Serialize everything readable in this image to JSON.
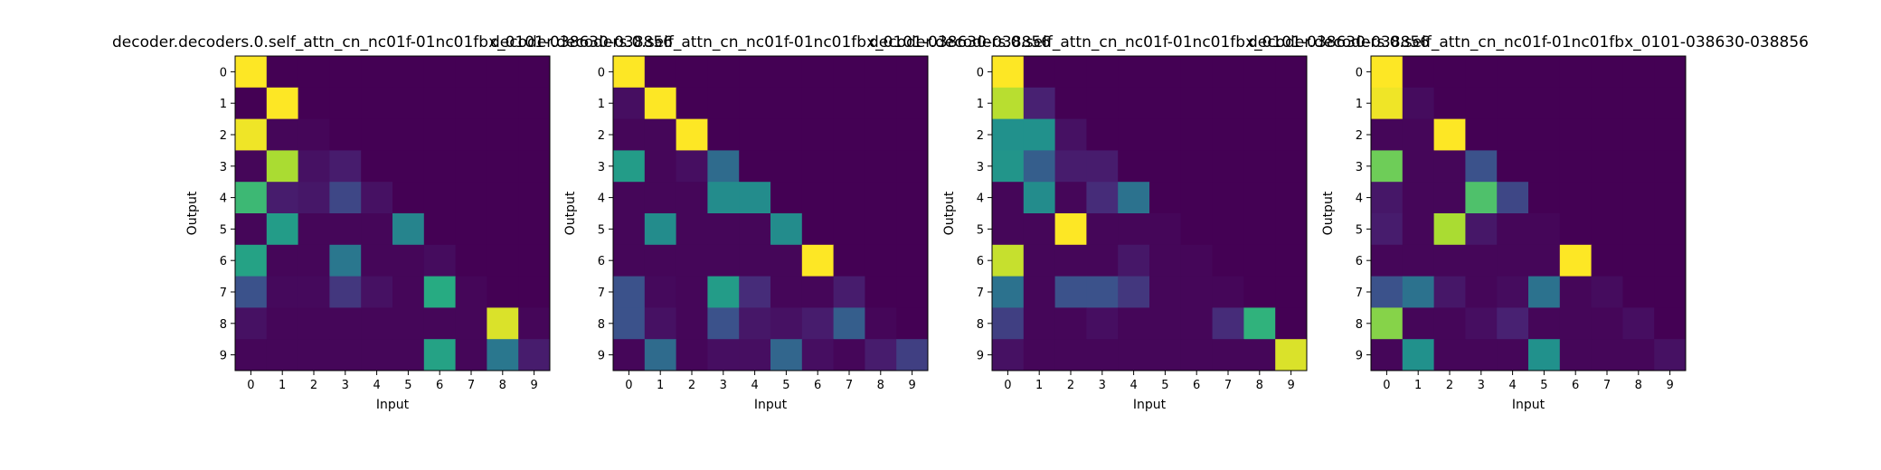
{
  "chart_data": [
    {
      "type": "heatmap",
      "title": "decoder.decoders.0.self_attn_cn_nc01f-01nc01fbx_0101-038630-038856",
      "xlabel": "Input",
      "ylabel": "Output",
      "x_ticks": [
        "0",
        "1",
        "2",
        "3",
        "4",
        "5",
        "6",
        "7",
        "8",
        "9"
      ],
      "y_ticks": [
        "0",
        "1",
        "2",
        "3",
        "4",
        "5",
        "6",
        "7",
        "8",
        "9"
      ],
      "colormap": "viridis",
      "value_range": [
        0,
        1
      ],
      "grid": false,
      "values": [
        [
          1.0,
          0,
          0,
          0,
          0,
          0,
          0,
          0,
          0,
          0
        ],
        [
          0.0,
          1.0,
          0,
          0,
          0,
          0,
          0,
          0,
          0,
          0
        ],
        [
          0.98,
          0.02,
          0.02,
          0,
          0,
          0,
          0,
          0,
          0,
          0
        ],
        [
          0.02,
          0.88,
          0.06,
          0.1,
          0,
          0,
          0,
          0,
          0,
          0
        ],
        [
          0.68,
          0.1,
          0.08,
          0.22,
          0.06,
          0,
          0,
          0,
          0,
          0
        ],
        [
          0.02,
          0.55,
          0.02,
          0.02,
          0.02,
          0.45,
          0,
          0,
          0,
          0
        ],
        [
          0.58,
          0.02,
          0.02,
          0.4,
          0.02,
          0.02,
          0.04,
          0,
          0,
          0
        ],
        [
          0.25,
          0.03,
          0.03,
          0.18,
          0.06,
          0.02,
          0.62,
          0.02,
          0,
          0
        ],
        [
          0.06,
          0.02,
          0.02,
          0.02,
          0.02,
          0.02,
          0.02,
          0.02,
          0.95,
          0.02
        ],
        [
          0.02,
          0.02,
          0.02,
          0.02,
          0.02,
          0.02,
          0.58,
          0.02,
          0.4,
          0.1
        ]
      ]
    },
    {
      "type": "heatmap",
      "title": "decoder.decoders.0.self_attn_cn_nc01f-01nc01fbx_0101-038630-038856",
      "xlabel": "Input",
      "ylabel": "Output",
      "x_ticks": [
        "0",
        "1",
        "2",
        "3",
        "4",
        "5",
        "6",
        "7",
        "8",
        "9"
      ],
      "y_ticks": [
        "0",
        "1",
        "2",
        "3",
        "4",
        "5",
        "6",
        "7",
        "8",
        "9"
      ],
      "colormap": "viridis",
      "value_range": [
        0,
        1
      ],
      "grid": false,
      "values": [
        [
          1.0,
          0,
          0,
          0,
          0,
          0,
          0,
          0,
          0,
          0
        ],
        [
          0.05,
          1.0,
          0,
          0,
          0,
          0,
          0,
          0,
          0,
          0
        ],
        [
          0.02,
          0.02,
          1.0,
          0,
          0,
          0,
          0,
          0,
          0,
          0
        ],
        [
          0.55,
          0.02,
          0.05,
          0.35,
          0,
          0,
          0,
          0,
          0,
          0
        ],
        [
          0.02,
          0.02,
          0.02,
          0.48,
          0.48,
          0,
          0,
          0,
          0,
          0
        ],
        [
          0.02,
          0.48,
          0.02,
          0.02,
          0.02,
          0.48,
          0,
          0,
          0,
          0
        ],
        [
          0.02,
          0.02,
          0.02,
          0.02,
          0.02,
          0.02,
          1.0,
          0,
          0,
          0
        ],
        [
          0.25,
          0.03,
          0.02,
          0.55,
          0.15,
          0.02,
          0.02,
          0.1,
          0,
          0
        ],
        [
          0.25,
          0.06,
          0.02,
          0.25,
          0.08,
          0.06,
          0.1,
          0.3,
          0.02,
          0
        ],
        [
          0.02,
          0.35,
          0.02,
          0.05,
          0.05,
          0.33,
          0.05,
          0.02,
          0.1,
          0.2
        ]
      ]
    },
    {
      "type": "heatmap",
      "title": "decoder.decoders.0.self_attn_cn_nc01f-01nc01fbx_0101-038630-038856",
      "xlabel": "Input",
      "ylabel": "Output",
      "x_ticks": [
        "0",
        "1",
        "2",
        "3",
        "4",
        "5",
        "6",
        "7",
        "8",
        "9"
      ],
      "y_ticks": [
        "0",
        "1",
        "2",
        "3",
        "4",
        "5",
        "6",
        "7",
        "8",
        "9"
      ],
      "colormap": "viridis",
      "value_range": [
        0,
        1
      ],
      "grid": false,
      "values": [
        [
          1.0,
          0,
          0,
          0,
          0,
          0,
          0,
          0,
          0,
          0
        ],
        [
          0.9,
          0.12,
          0,
          0,
          0,
          0,
          0,
          0,
          0,
          0
        ],
        [
          0.5,
          0.5,
          0.06,
          0,
          0,
          0,
          0,
          0,
          0,
          0
        ],
        [
          0.52,
          0.3,
          0.1,
          0.1,
          0,
          0,
          0,
          0,
          0,
          0
        ],
        [
          0.02,
          0.48,
          0.02,
          0.15,
          0.38,
          0,
          0,
          0,
          0,
          0
        ],
        [
          0.02,
          0.02,
          1.0,
          0.02,
          0.02,
          0.02,
          0,
          0,
          0,
          0
        ],
        [
          0.92,
          0.02,
          0.02,
          0.02,
          0.08,
          0.02,
          0.02,
          0,
          0,
          0
        ],
        [
          0.38,
          0.02,
          0.25,
          0.25,
          0.18,
          0.02,
          0.02,
          0.02,
          0,
          0
        ],
        [
          0.2,
          0.02,
          0.02,
          0.05,
          0.02,
          0.02,
          0.02,
          0.15,
          0.65,
          0
        ],
        [
          0.06,
          0.02,
          0.02,
          0.02,
          0.02,
          0.02,
          0.02,
          0.02,
          0.02,
          0.95
        ]
      ]
    },
    {
      "type": "heatmap",
      "title": "decoder.decoders.0.self_attn_cn_nc01f-01nc01fbx_0101-038630-038856",
      "xlabel": "Input",
      "ylabel": "Output",
      "x_ticks": [
        "0",
        "1",
        "2",
        "3",
        "4",
        "5",
        "6",
        "7",
        "8",
        "9"
      ],
      "y_ticks": [
        "0",
        "1",
        "2",
        "3",
        "4",
        "5",
        "6",
        "7",
        "8",
        "9"
      ],
      "colormap": "viridis",
      "value_range": [
        0,
        1
      ],
      "grid": false,
      "values": [
        [
          1.0,
          0,
          0,
          0,
          0,
          0,
          0,
          0,
          0,
          0
        ],
        [
          0.98,
          0.04,
          0,
          0,
          0,
          0,
          0,
          0,
          0,
          0
        ],
        [
          0.02,
          0.02,
          1.0,
          0,
          0,
          0,
          0,
          0,
          0,
          0
        ],
        [
          0.78,
          0.02,
          0.02,
          0.25,
          0,
          0,
          0,
          0,
          0,
          0
        ],
        [
          0.08,
          0.02,
          0.02,
          0.72,
          0.22,
          0,
          0,
          0,
          0,
          0
        ],
        [
          0.1,
          0.02,
          0.88,
          0.08,
          0.02,
          0.02,
          0,
          0,
          0,
          0
        ],
        [
          0.02,
          0.02,
          0.02,
          0.02,
          0.02,
          0.02,
          1.0,
          0,
          0,
          0
        ],
        [
          0.25,
          0.38,
          0.08,
          0.02,
          0.04,
          0.38,
          0.02,
          0.04,
          0,
          0
        ],
        [
          0.82,
          0.02,
          0.02,
          0.05,
          0.12,
          0.02,
          0.02,
          0.02,
          0.05,
          0
        ],
        [
          0.02,
          0.5,
          0.02,
          0.02,
          0.02,
          0.5,
          0.02,
          0.02,
          0.02,
          0.06
        ]
      ]
    }
  ]
}
